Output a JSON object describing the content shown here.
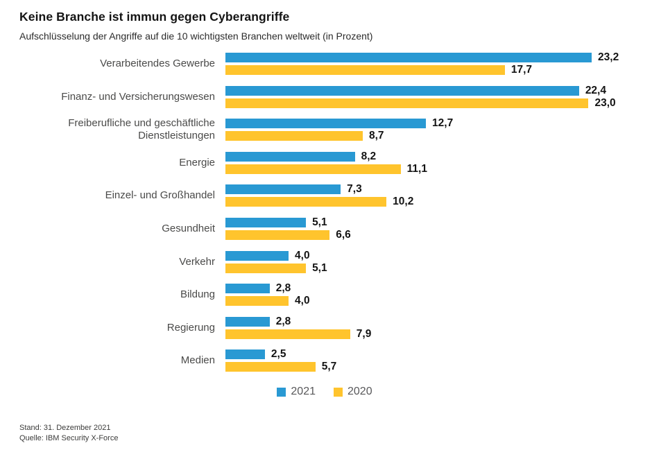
{
  "title": "Keine Branche ist immun gegen Cyberangriffe",
  "subtitle": "Aufschlüsselung der Angriffe auf die 10 wichtigsten Branchen weltweit (in Prozent)",
  "chart_data": {
    "type": "bar",
    "orientation": "horizontal",
    "title": "Keine Branche ist immun gegen Cyberangriffe",
    "subtitle": "Aufschlüsselung der Angriffe auf die 10 wichtigsten Branchen weltweit (in Prozent)",
    "categories": [
      "Verarbeitendes Gewerbe",
      "Finanz- und Versicherungswesen",
      "Freiberufliche und geschäftliche Dienstleistungen",
      "Energie",
      "Einzel- und Großhandel",
      "Gesundheit",
      "Verkehr",
      "Bildung",
      "Regierung",
      "Medien"
    ],
    "series": [
      {
        "name": "2021",
        "color": "#2999D3",
        "values": [
          23.2,
          22.4,
          12.7,
          8.2,
          7.3,
          5.1,
          4.0,
          2.8,
          2.8,
          2.5
        ]
      },
      {
        "name": "2020",
        "color": "#FFC42D",
        "values": [
          17.7,
          23.0,
          8.7,
          11.1,
          10.2,
          6.6,
          5.1,
          4.0,
          7.9,
          5.7
        ]
      }
    ],
    "value_labels_format": "decimal-comma, one fractional digit",
    "unit": "Prozent",
    "xlim": [
      0,
      25
    ],
    "grid": false,
    "legend_position": "bottom-center"
  },
  "legend": [
    {
      "label": "2021",
      "color": "#2999D3"
    },
    {
      "label": "2020",
      "color": "#FFC42D"
    }
  ],
  "footer": {
    "date": "Stand: 31. Dezember 2021",
    "source": "Quelle: IBM Security X-Force"
  },
  "colors": {
    "bar_2021": "#2999D3",
    "bar_2020": "#FFC42D",
    "text_dark": "#141414",
    "text_label": "#4a4a49"
  }
}
